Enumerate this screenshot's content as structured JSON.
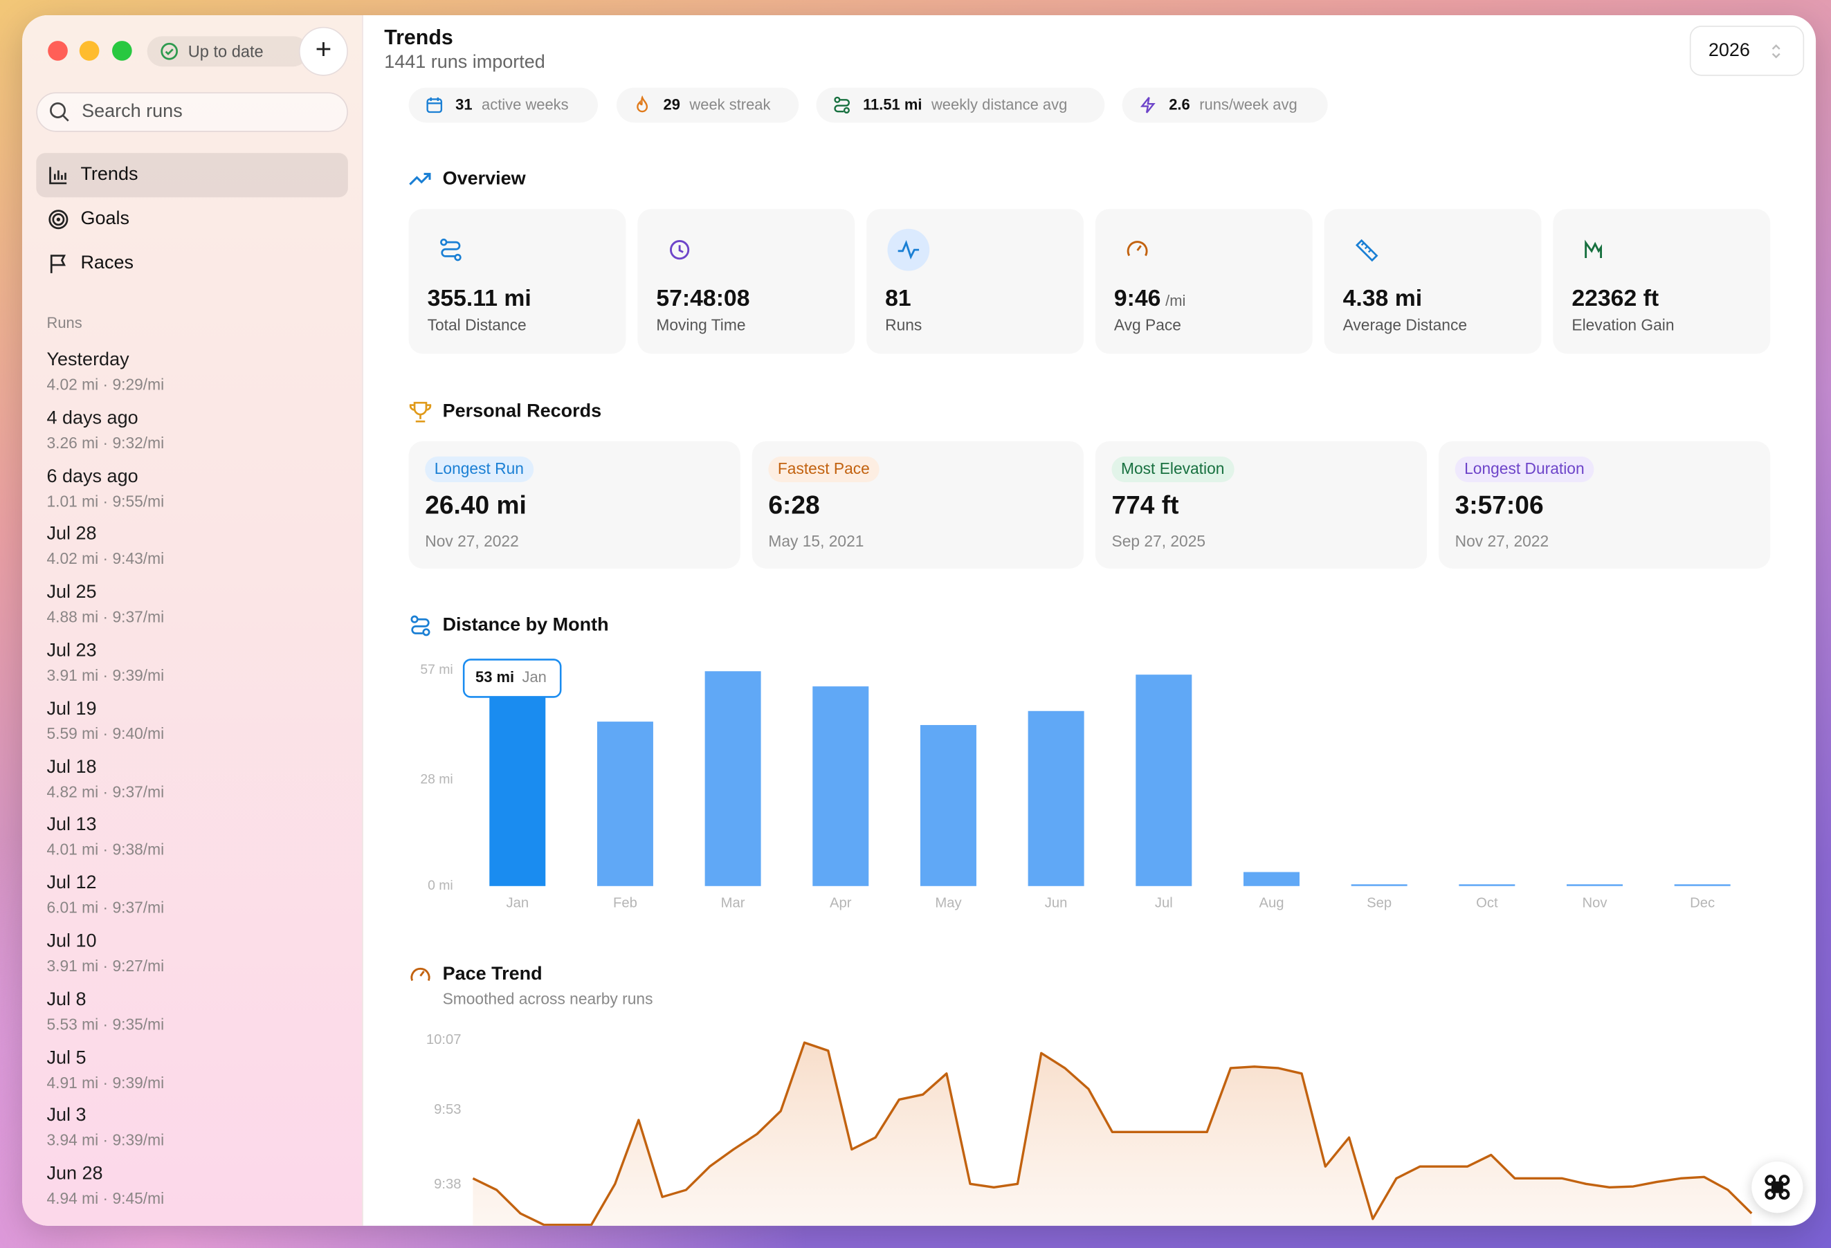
{
  "window": {
    "status": "Up to date",
    "search_placeholder": "Search runs",
    "nav": [
      "Trends",
      "Goals",
      "Races"
    ],
    "runs_heading": "Runs",
    "runs": [
      {
        "date": "Yesterday",
        "detail": "4.02 mi · 9:29/mi"
      },
      {
        "date": "4 days ago",
        "detail": "3.26 mi · 9:32/mi"
      },
      {
        "date": "6 days ago",
        "detail": "1.01 mi · 9:55/mi"
      },
      {
        "date": "Jul 28",
        "detail": "4.02 mi · 9:43/mi"
      },
      {
        "date": "Jul 25",
        "detail": "4.88 mi · 9:37/mi"
      },
      {
        "date": "Jul 23",
        "detail": "3.91 mi · 9:39/mi"
      },
      {
        "date": "Jul 19",
        "detail": "5.59 mi · 9:40/mi"
      },
      {
        "date": "Jul 18",
        "detail": "4.82 mi · 9:37/mi"
      },
      {
        "date": "Jul 13",
        "detail": "4.01 mi · 9:38/mi"
      },
      {
        "date": "Jul 12",
        "detail": "6.01 mi · 9:37/mi"
      },
      {
        "date": "Jul 10",
        "detail": "3.91 mi · 9:27/mi"
      },
      {
        "date": "Jul 8",
        "detail": "5.53 mi · 9:35/mi"
      },
      {
        "date": "Jul 5",
        "detail": "4.91 mi · 9:39/mi"
      },
      {
        "date": "Jul 3",
        "detail": "3.94 mi · 9:39/mi"
      },
      {
        "date": "Jun 28",
        "detail": "4.94 mi · 9:45/mi"
      }
    ]
  },
  "header": {
    "title": "Trends",
    "subtitle": "1441 runs imported",
    "year": "2026"
  },
  "stats": [
    {
      "value": "31",
      "label": "active weeks"
    },
    {
      "value": "29",
      "label": "week streak"
    },
    {
      "value": "11.51 mi",
      "label": "weekly distance avg"
    },
    {
      "value": "2.6",
      "label": "runs/week avg"
    }
  ],
  "overview": {
    "title": "Overview",
    "cards": [
      {
        "value": "355.11 mi",
        "label": "Total Distance"
      },
      {
        "value": "57:48:08",
        "label": "Moving Time"
      },
      {
        "value": "81",
        "label": "Runs"
      },
      {
        "value": "9:46",
        "unit": "/mi",
        "label": "Avg Pace"
      },
      {
        "value": "4.38 mi",
        "label": "Average Distance"
      },
      {
        "value": "22362 ft",
        "label": "Elevation Gain"
      }
    ]
  },
  "records": {
    "title": "Personal Records",
    "items": [
      {
        "tag": "Longest Run",
        "value": "26.40 mi",
        "date": "Nov 27, 2022"
      },
      {
        "tag": "Fastest Pace",
        "value": "6:28",
        "date": "May 15, 2021"
      },
      {
        "tag": "Most Elevation",
        "value": "774 ft",
        "date": "Sep 27, 2025"
      },
      {
        "tag": "Longest Duration",
        "value": "3:57:06",
        "date": "Nov 27, 2022"
      }
    ]
  },
  "distance_chart": {
    "type": "bar",
    "title": "Distance by Month",
    "categories": [
      "Jan",
      "Feb",
      "Mar",
      "Apr",
      "May",
      "Jun",
      "Jul",
      "Aug",
      "Sep",
      "Oct",
      "Nov",
      "Dec"
    ],
    "values": [
      53,
      43.4,
      56.7,
      52.7,
      42.5,
      46.2,
      55.8,
      3.7,
      0,
      0,
      0,
      0
    ],
    "value_labels": [
      "53 mi",
      null,
      null,
      null,
      null,
      null,
      null,
      null,
      null,
      null,
      null,
      null
    ],
    "color": "#60a8f6",
    "highlight_color": "#1a8cf0",
    "ylim": [
      0,
      57
    ],
    "yticks": [
      {
        "value": 0,
        "label": "0 mi"
      },
      {
        "value": 28,
        "label": "28 mi"
      },
      {
        "value": 57,
        "label": "57 mi"
      }
    ]
  },
  "pace_chart": {
    "type": "area",
    "title": "Pace Trend",
    "subtitle": "Smoothed across nearby runs",
    "color": "#c2620f",
    "values": [
      579.3,
      577,
      572.3,
      570,
      570,
      570,
      578.2,
      591,
      575.6,
      577,
      581.7,
      585.1,
      588.2,
      592.8,
      606.5,
      604.9,
      585.1,
      587.5,
      595.1,
      596.1,
      600.3,
      578.2,
      577.5,
      578.2,
      604.4,
      601.4,
      597.2,
      588.6,
      588.6,
      588.6,
      588.6,
      588.6,
      601.4,
      601.7,
      601.4,
      600.3,
      581.7,
      587.5,
      571.2,
      579.3,
      581.7,
      581.7,
      581.7,
      584,
      579.3,
      579.3,
      579.3,
      578.2,
      577.5,
      577.7,
      578.6,
      579.3,
      579.6,
      577,
      572.3
    ],
    "ylim": [
      570,
      608
    ],
    "yticks": [
      {
        "value": 578,
        "label": "9:38"
      },
      {
        "value": 593,
        "label": "9:53"
      },
      {
        "value": 607,
        "label": "10:07"
      }
    ]
  }
}
